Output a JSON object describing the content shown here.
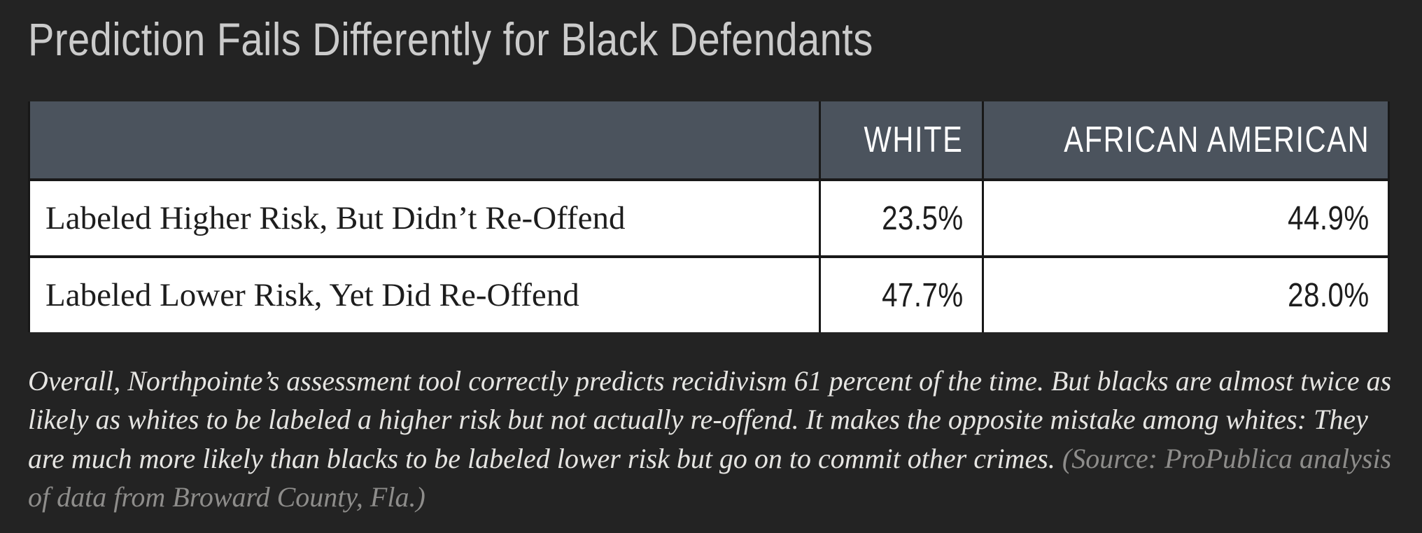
{
  "colors": {
    "background": "#232323",
    "header_bg": "#4b535d",
    "header_text": "#ffffff",
    "row_bg": "#ffffff",
    "row_text": "#1d1d1d",
    "title_text": "#cbcbcb",
    "caption_text": "#e6e5e2",
    "source_text": "#8e8d8b",
    "border": "#181818"
  },
  "title": "Prediction Fails Differently for Black Defendants",
  "table": {
    "columns": {
      "white": "WHITE",
      "african_american": "AFRICAN AMERICAN"
    },
    "rows": [
      {
        "label": "Labeled Higher Risk, But Didn’t Re-Offend",
        "white": "23.5%",
        "african_american": "44.9%"
      },
      {
        "label": "Labeled Lower Risk, Yet Did Re-Offend",
        "white": "47.7%",
        "african_american": "28.0%"
      }
    ]
  },
  "caption": {
    "text": "Overall, Northpointe’s assessment tool correctly predicts recidivism 61 percent of the time. But blacks are almost twice as likely as whites to be labeled a higher risk but not actually re-offend. It makes the opposite mistake among whites: They are much more likely than blacks to be labeled lower risk but go on to commit other crimes.",
    "source": "(Source: ProPublica analysis of data from Broward County, Fla.)"
  },
  "chart_data": {
    "type": "table",
    "title": "Prediction Fails Differently for Black Defendants",
    "categories": [
      "White",
      "African American"
    ],
    "series": [
      {
        "name": "Labeled Higher Risk, But Didn’t Re-Offend",
        "values": [
          23.5,
          44.9
        ]
      },
      {
        "name": "Labeled Lower Risk, Yet Did Re-Offend",
        "values": [
          47.7,
          28.0
        ]
      }
    ],
    "unit": "percent",
    "source": "ProPublica analysis of data from Broward County, Fla."
  }
}
